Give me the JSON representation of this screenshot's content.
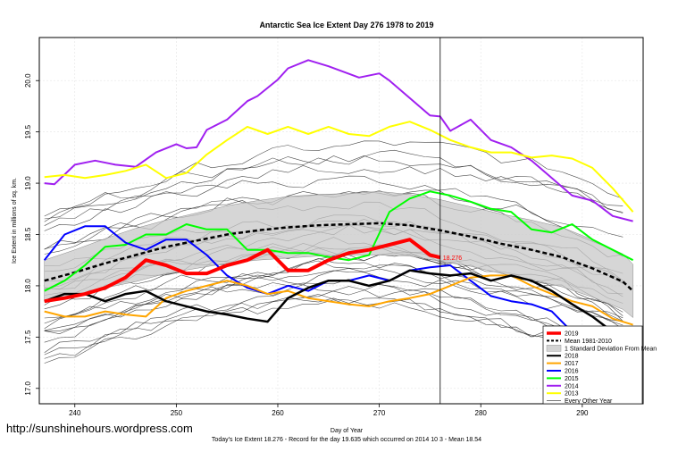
{
  "chart_data": {
    "type": "line",
    "title": "Antarctic Sea Ice Extent Day 276 1978 to 2019",
    "xlabel": "Day of Year",
    "ylabel": "Ice Extent in millions of sq. km.",
    "xlim": [
      236.5,
      296
    ],
    "ylim": [
      16.85,
      20.42
    ],
    "xticks": [
      240,
      250,
      260,
      270,
      280,
      290
    ],
    "yticks": [
      17.0,
      17.5,
      18.0,
      18.5,
      19.0,
      19.5,
      20.0
    ],
    "ytick_labels": [
      "17.0",
      "17.5",
      "18.0",
      "18.5",
      "19.0",
      "19.5",
      "20.0"
    ],
    "grid": true,
    "vline_day": 276,
    "current_marker_label": "18.276",
    "legend_position": "bottom-right",
    "legend": [
      {
        "label": "2019",
        "color": "#ff0000",
        "style": "thick"
      },
      {
        "label": "Mean 1981-2010",
        "color": "#000000",
        "style": "dashed"
      },
      {
        "label": "1 Standard Deviation From Mean",
        "color": "#d3d3d3",
        "style": "box"
      },
      {
        "label": "2018",
        "color": "#000000",
        "style": "solid"
      },
      {
        "label": "2017",
        "color": "#ffa500",
        "style": "solid"
      },
      {
        "label": "2016",
        "color": "#0000ff",
        "style": "solid"
      },
      {
        "label": "2015",
        "color": "#00ff00",
        "style": "solid"
      },
      {
        "label": "2014",
        "color": "#a020f0",
        "style": "solid"
      },
      {
        "label": "2013",
        "color": "#ffff00",
        "style": "solid"
      },
      {
        "label": "Every Other Year",
        "color": "#555555",
        "style": "thin"
      }
    ],
    "mean_band": {
      "x": [
        237,
        240,
        243,
        246,
        249,
        252,
        255,
        258,
        261,
        264,
        267,
        270,
        273,
        276,
        279,
        282,
        285,
        288,
        291,
        294,
        295
      ],
      "mean": [
        18.05,
        18.13,
        18.22,
        18.3,
        18.38,
        18.44,
        18.5,
        18.54,
        18.57,
        18.59,
        18.6,
        18.61,
        18.59,
        18.54,
        18.48,
        18.41,
        18.35,
        18.28,
        18.17,
        18.04,
        17.95
      ],
      "sd": [
        0.2,
        0.22,
        0.24,
        0.26,
        0.26,
        0.27,
        0.28,
        0.29,
        0.3,
        0.3,
        0.3,
        0.31,
        0.3,
        0.3,
        0.29,
        0.29,
        0.29,
        0.29,
        0.28,
        0.27,
        0.26
      ]
    },
    "series": [
      {
        "name": "2014",
        "color": "#a020f0",
        "width": 2,
        "x": [
          237,
          238,
          240,
          242,
          244,
          246,
          248,
          250,
          251,
          252,
          253,
          255,
          257,
          258,
          260,
          261,
          263,
          265,
          268,
          270,
          271,
          273,
          275,
          276,
          277,
          279,
          281,
          283,
          285,
          287,
          289,
          291,
          293,
          295
        ],
        "y": [
          19.0,
          18.99,
          19.18,
          19.22,
          19.18,
          19.16,
          19.3,
          19.38,
          19.34,
          19.35,
          19.52,
          19.62,
          19.8,
          19.85,
          20.01,
          20.12,
          20.2,
          20.14,
          20.03,
          20.07,
          20.0,
          19.83,
          19.66,
          19.65,
          19.51,
          19.62,
          19.42,
          19.35,
          19.22,
          19.05,
          18.88,
          18.83,
          18.68,
          18.63
        ]
      },
      {
        "name": "2013",
        "color": "#ffff00",
        "width": 2,
        "x": [
          237,
          239,
          241,
          243,
          245,
          247,
          249,
          251,
          253,
          255,
          257,
          259,
          261,
          263,
          265,
          267,
          269,
          271,
          273,
          275,
          277,
          279,
          281,
          283,
          285,
          287,
          289,
          291,
          293,
          295
        ],
        "y": [
          19.06,
          19.08,
          19.05,
          19.08,
          19.12,
          19.18,
          19.05,
          19.1,
          19.28,
          19.42,
          19.55,
          19.48,
          19.55,
          19.48,
          19.55,
          19.48,
          19.46,
          19.55,
          19.6,
          19.52,
          19.42,
          19.35,
          19.3,
          19.3,
          19.25,
          19.27,
          19.24,
          19.15,
          18.95,
          18.72
        ]
      },
      {
        "name": "2015",
        "color": "#00ff00",
        "width": 2,
        "x": [
          237,
          239,
          241,
          243,
          245,
          247,
          249,
          251,
          253,
          255,
          257,
          259,
          261,
          263,
          265,
          267,
          269,
          271,
          273,
          275,
          277,
          279,
          281,
          283,
          285,
          287,
          289,
          291,
          293,
          295
        ],
        "y": [
          17.95,
          18.05,
          18.2,
          18.38,
          18.4,
          18.5,
          18.5,
          18.6,
          18.55,
          18.55,
          18.35,
          18.35,
          18.32,
          18.32,
          18.28,
          18.25,
          18.3,
          18.72,
          18.85,
          18.92,
          18.88,
          18.82,
          18.75,
          18.72,
          18.55,
          18.52,
          18.6,
          18.45,
          18.35,
          18.25
        ]
      },
      {
        "name": "2016",
        "color": "#0000ff",
        "width": 2,
        "x": [
          237,
          239,
          241,
          243,
          245,
          247,
          249,
          251,
          253,
          255,
          257,
          259,
          261,
          263,
          265,
          267,
          269,
          271,
          273,
          275,
          277,
          279,
          281,
          283,
          285,
          287,
          289,
          291,
          293,
          295
        ],
        "y": [
          18.25,
          18.5,
          18.58,
          18.58,
          18.42,
          18.35,
          18.45,
          18.45,
          18.3,
          18.1,
          17.98,
          17.92,
          18.0,
          17.95,
          18.05,
          18.05,
          18.1,
          18.05,
          18.15,
          18.18,
          18.2,
          18.05,
          17.9,
          17.85,
          17.82,
          17.75,
          17.55,
          17.4,
          17.25,
          17.2
        ]
      },
      {
        "name": "2017",
        "color": "#ffa500",
        "width": 2,
        "x": [
          237,
          239,
          241,
          243,
          245,
          247,
          249,
          251,
          253,
          255,
          257,
          259,
          261,
          263,
          265,
          267,
          269,
          271,
          273,
          275,
          277,
          279,
          281,
          283,
          285,
          287,
          289,
          291,
          293,
          295
        ],
        "y": [
          17.75,
          17.7,
          17.7,
          17.75,
          17.72,
          17.7,
          17.88,
          17.95,
          18.0,
          18.05,
          18.0,
          17.92,
          17.95,
          17.88,
          17.85,
          17.82,
          17.8,
          17.85,
          17.88,
          17.92,
          18.0,
          18.08,
          18.1,
          18.1,
          18.0,
          17.92,
          17.85,
          17.8,
          17.68,
          17.62
        ]
      },
      {
        "name": "2018",
        "color": "#000000",
        "width": 2.5,
        "x": [
          237,
          239,
          241,
          243,
          245,
          247,
          249,
          251,
          253,
          255,
          257,
          259,
          261,
          263,
          265,
          267,
          269,
          271,
          273,
          275,
          277,
          279,
          281,
          283,
          285,
          287,
          289,
          291,
          293,
          295
        ],
        "y": [
          17.85,
          17.92,
          17.92,
          17.85,
          17.92,
          17.95,
          17.85,
          17.8,
          17.75,
          17.72,
          17.68,
          17.65,
          17.88,
          17.98,
          18.05,
          18.05,
          18.0,
          18.05,
          18.15,
          18.12,
          18.1,
          18.12,
          18.05,
          18.1,
          18.05,
          17.95,
          17.82,
          17.7,
          17.55,
          17.35
        ]
      },
      {
        "name": "2019",
        "color": "#ff0000",
        "width": 4,
        "x": [
          237,
          239,
          241,
          243,
          245,
          247,
          249,
          251,
          253,
          255,
          257,
          259,
          261,
          263,
          265,
          267,
          269,
          271,
          273,
          275,
          276
        ],
        "y": [
          17.85,
          17.88,
          17.92,
          17.98,
          18.08,
          18.25,
          18.2,
          18.12,
          18.12,
          18.2,
          18.25,
          18.35,
          18.15,
          18.15,
          18.25,
          18.32,
          18.35,
          18.4,
          18.45,
          18.3,
          18.276
        ]
      }
    ]
  },
  "watermark": "http://sunshinehours.wordpress.com",
  "footer": "Today's Ice Extent  18.276   - Record for the day  19.635 which occurred on 2014 10 3   - Mean  18.54"
}
